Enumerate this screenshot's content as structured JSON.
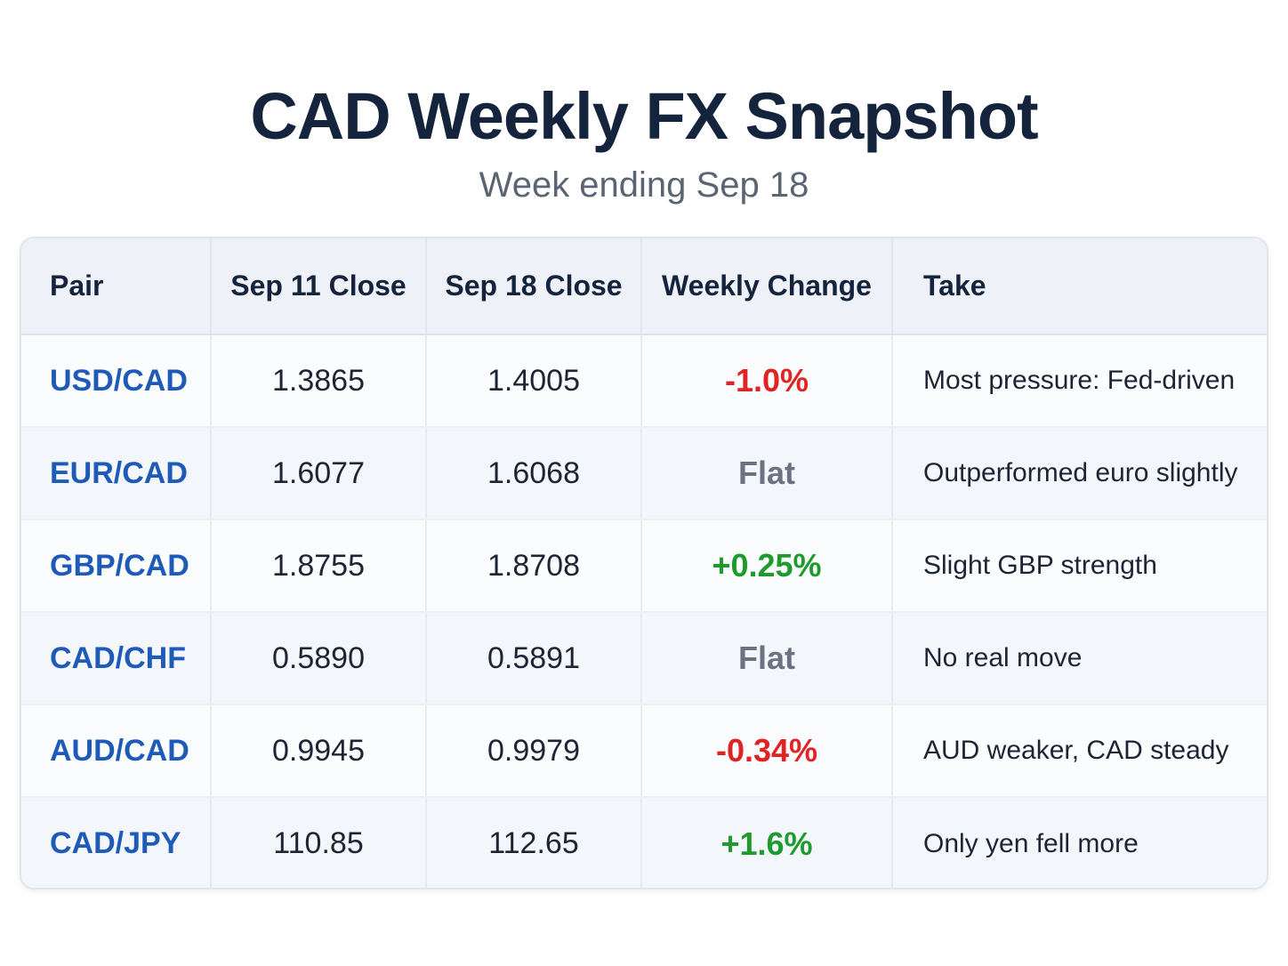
{
  "title": "CAD Weekly FX Snapshot",
  "subtitle": "Week ending Sep 18",
  "colors": {
    "pair_text": "#1e5ab8",
    "negative": "#e02424",
    "positive": "#1f9a2e",
    "flat": "#6b7280"
  },
  "chart_data": {
    "type": "table",
    "columns": [
      "Pair",
      "Sep 11 Close",
      "Sep 18 Close",
      "Weekly Change",
      "Take"
    ],
    "rows": [
      {
        "pair": "USD/CAD",
        "sep11": "1.3865",
        "sep18": "1.4005",
        "change": "-1.0%",
        "direction": "neg",
        "take": "Most pressure: Fed-driven"
      },
      {
        "pair": "EUR/CAD",
        "sep11": "1.6077",
        "sep18": "1.6068",
        "change": "Flat",
        "direction": "flat",
        "take": "Outperformed euro slightly"
      },
      {
        "pair": "GBP/CAD",
        "sep11": "1.8755",
        "sep18": "1.8708",
        "change": "+0.25%",
        "direction": "pos",
        "take": "Slight GBP strength"
      },
      {
        "pair": "CAD/CHF",
        "sep11": "0.5890",
        "sep18": "0.5891",
        "change": "Flat",
        "direction": "flat",
        "take": "No real move"
      },
      {
        "pair": "AUD/CAD",
        "sep11": "0.9945",
        "sep18": "0.9979",
        "change": "-0.34%",
        "direction": "neg",
        "take": "AUD weaker, CAD steady"
      },
      {
        "pair": "CAD/JPY",
        "sep11": "110.85",
        "sep18": "112.65",
        "change": "+1.6%",
        "direction": "pos",
        "take": "Only yen fell more"
      }
    ]
  }
}
